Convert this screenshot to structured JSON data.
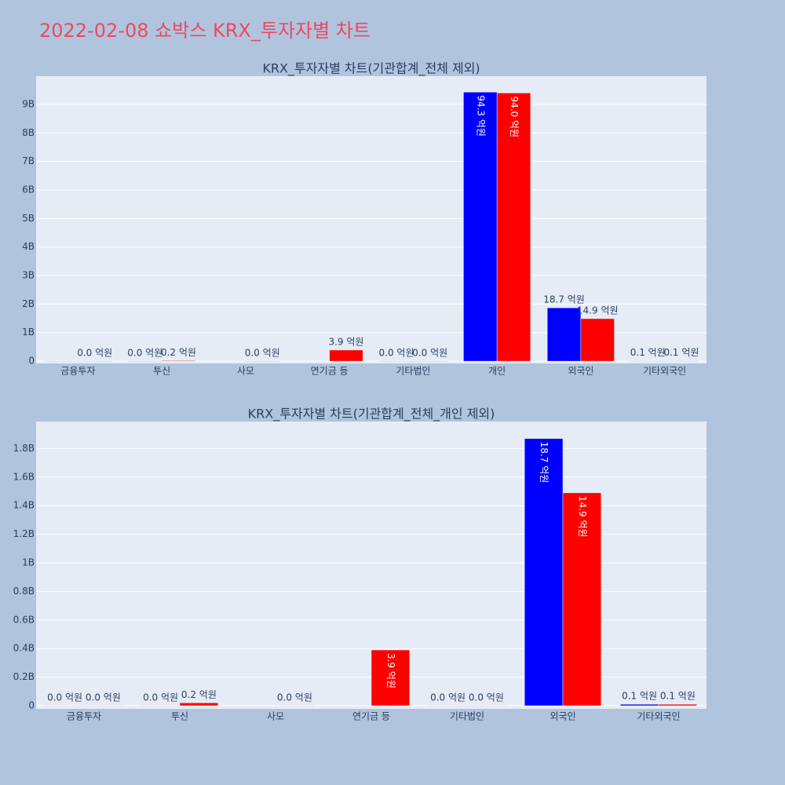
{
  "title": "2022-02-08 쇼박스 KRX_투자자별 차트",
  "chart_data": [
    {
      "type": "bar",
      "title": "KRX_투자자별 차트(기관합계_전체 제외)",
      "categories": [
        "금융투자",
        "투신",
        "사모",
        "연기금 등",
        "기타법인",
        "개인",
        "외국인",
        "기타외국인"
      ],
      "series": [
        {
          "color": "#0000ff",
          "values": [
            0,
            0,
            null,
            null,
            0,
            9430000000,
            1870000000,
            10000000
          ],
          "value_labels": [
            null,
            "0.0 억원",
            null,
            null,
            "0.0 억원",
            "94.3 억원",
            "18.7 억원",
            "0.1 억원"
          ]
        },
        {
          "color": "#ff0000",
          "values": [
            0,
            20000000,
            0,
            390000000,
            0,
            9400000000,
            1490000000,
            10000000
          ],
          "value_labels": [
            "0.0 억원",
            "0.2 억원",
            "0.0 억원",
            "3.9 억원",
            "0.0 억원",
            "94.0 억원",
            "14.9 억원",
            "0.1 억원"
          ]
        }
      ],
      "ylim": [
        -80000000,
        9990000000
      ],
      "yticks": [
        0,
        {
          "value": 1000000000,
          "label": "1B"
        },
        {
          "value": 2000000000,
          "label": "2B"
        },
        {
          "value": 3000000000,
          "label": "3B"
        },
        {
          "value": 4000000000,
          "label": "4B"
        },
        {
          "value": 5000000000,
          "label": "5B"
        },
        {
          "value": 6000000000,
          "label": "6B"
        },
        {
          "value": 7000000000,
          "label": "7B"
        },
        {
          "value": 8000000000,
          "label": "8B"
        },
        {
          "value": 9000000000,
          "label": "9B"
        }
      ],
      "grid": true
    },
    {
      "type": "bar",
      "title": "KRX_투자자별 차트(기관합계_전체_개인 제외)",
      "categories": [
        "금융투자",
        "투신",
        "사모",
        "연기금 등",
        "기타법인",
        "외국인",
        "기타외국인"
      ],
      "series": [
        {
          "color": "#0000ff",
          "values": [
            0,
            0,
            null,
            null,
            0,
            1870000000,
            10000000
          ],
          "value_labels": [
            "0.0 억원",
            "0.0 억원",
            null,
            null,
            "0.0 억원",
            "18.7 억원",
            "0.1 억원"
          ]
        },
        {
          "color": "#ff0000",
          "values": [
            0,
            20000000,
            0,
            390000000,
            0,
            1490000000,
            10000000
          ],
          "value_labels": [
            "0.0 억원",
            "0.2 억원",
            "0.0 억원",
            "3.9 억원",
            "0.0 억원",
            "14.9 억원",
            "0.1 억원"
          ]
        }
      ],
      "ylim": [
        -22000000,
        1989000000
      ],
      "yticks": [
        0,
        {
          "value": 200000000,
          "label": "0.2B"
        },
        {
          "value": 400000000,
          "label": "0.4B"
        },
        {
          "value": 600000000,
          "label": "0.6B"
        },
        {
          "value": 800000000,
          "label": "0.8B"
        },
        {
          "value": 1000000000,
          "label": "1B"
        },
        {
          "value": 1200000000,
          "label": "1.2B"
        },
        {
          "value": 1400000000,
          "label": "1.4B"
        },
        {
          "value": 1600000000,
          "label": "1.6B"
        },
        {
          "value": 1800000000,
          "label": "1.8B"
        }
      ],
      "grid": true
    }
  ]
}
